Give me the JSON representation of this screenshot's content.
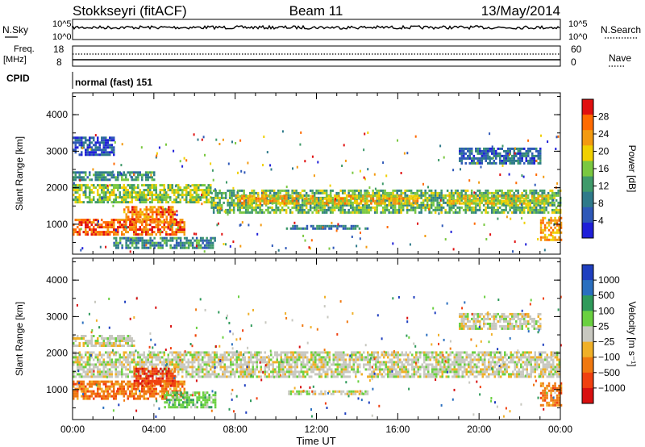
{
  "header": {
    "station": "Stokkseyri (fitACF)",
    "beam": "Beam 11",
    "date": "13/May/2014"
  },
  "status_panels": {
    "nsky_label": "N.Sky",
    "nsky_ticks": [
      "10^5",
      "10^0"
    ],
    "nsearch_label": "N.Search",
    "freq_label_1": "Freq.",
    "freq_label_2": "[MHz]",
    "freq_ticks": [
      "18",
      "8"
    ],
    "nave_label": "Nave",
    "nave_ticks": [
      "60",
      "0"
    ],
    "cpid_label": "CPID",
    "cpid_value": "normal (fast) 151"
  },
  "colors": {
    "power": [
      "#1f1fd8",
      "#2e58b8",
      "#2f7a8a",
      "#3f9a6a",
      "#7ac840",
      "#f0d000",
      "#f39a10",
      "#ff6a00",
      "#e01010"
    ],
    "velocity": [
      "#1f3fbf",
      "#2a6fbf",
      "#2f9a5a",
      "#6ad040",
      "#c8c8c0",
      "#f0b028",
      "#f07810",
      "#f04010",
      "#d81010"
    ],
    "ground_scatter": "#b8b8b0"
  },
  "chart_data": [
    {
      "type": "heatmap",
      "title": "Power",
      "ylabel": "Slant Range [km]",
      "xlabel": "Time UT",
      "x_ticks": [
        "00:00",
        "04:00",
        "08:00",
        "12:00",
        "16:00",
        "20:00",
        "00:00"
      ],
      "x_range_hours": [
        0,
        24
      ],
      "y_ticks": [
        1000,
        2000,
        3000,
        4000
      ],
      "y_range_km": [
        180,
        4600
      ],
      "colorbar_label": "Power [dB]",
      "colorbar_ticks": [
        "4",
        "8",
        "12",
        "16",
        "20",
        "24",
        "28"
      ],
      "colorbar_range": [
        0,
        32
      ],
      "bands": [
        {
          "t0": 0.0,
          "t1": 6.8,
          "r0": 1600,
          "r1": 2100,
          "level": 16
        },
        {
          "t0": 6.8,
          "t1": 24.0,
          "r0": 1300,
          "r1": 1950,
          "level": 14
        },
        {
          "t0": 8.0,
          "t1": 17.0,
          "r0": 1550,
          "r1": 1800,
          "level": 22
        },
        {
          "t0": 18.5,
          "t1": 23.5,
          "r0": 1550,
          "r1": 1800,
          "level": 20
        },
        {
          "t0": 0.0,
          "t1": 5.5,
          "r0": 750,
          "r1": 1150,
          "level": 28
        },
        {
          "t0": 2.5,
          "t1": 5.0,
          "r0": 1100,
          "r1": 1500,
          "level": 26
        },
        {
          "t0": 0.0,
          "t1": 4.0,
          "r0": 2200,
          "r1": 2450,
          "level": 10
        },
        {
          "t0": 0.0,
          "t1": 2.0,
          "r0": 2900,
          "r1": 3400,
          "level": 4
        },
        {
          "t0": 10.5,
          "t1": 14.5,
          "r0": 880,
          "r1": 980,
          "level": 8
        },
        {
          "t0": 19.0,
          "t1": 23.0,
          "r0": 2700,
          "r1": 3100,
          "level": 6
        },
        {
          "t0": 23.0,
          "t1": 24.0,
          "r0": 600,
          "r1": 1200,
          "level": 24
        },
        {
          "t0": 2.0,
          "t1": 7.0,
          "r0": 350,
          "r1": 650,
          "level": 10
        }
      ]
    },
    {
      "type": "heatmap",
      "title": "Velocity",
      "ylabel": "Slant Range [km]",
      "xlabel": "Time UT",
      "x_ticks": [
        "00:00",
        "04:00",
        "08:00",
        "12:00",
        "16:00",
        "20:00",
        "00:00"
      ],
      "x_range_hours": [
        0,
        24
      ],
      "y_ticks": [
        1000,
        2000,
        3000,
        4000
      ],
      "y_range_km": [
        180,
        4600
      ],
      "colorbar_label": "Velocity [m s⁻¹]",
      "colorbar_ticks": [
        "1000",
        "500",
        "100",
        "25",
        "−25",
        "−100",
        "−500",
        "−1000"
      ],
      "bands": [
        {
          "t0": 0.0,
          "t1": 24.0,
          "r0": 1350,
          "r1": 2050,
          "level": 4
        },
        {
          "t0": 0.0,
          "t1": 3.0,
          "r0": 2200,
          "r1": 2500,
          "level": 4
        },
        {
          "t0": 0.0,
          "t1": 5.5,
          "r0": 750,
          "r1": 1250,
          "level": 6
        },
        {
          "t0": 3.0,
          "t1": 5.0,
          "r0": 1100,
          "r1": 1600,
          "level": 7
        },
        {
          "t0": 4.5,
          "t1": 7.0,
          "r0": 500,
          "r1": 950,
          "level": 3
        },
        {
          "t0": 10.5,
          "t1": 14.5,
          "r0": 880,
          "r1": 980,
          "level": 4
        },
        {
          "t0": 23.0,
          "t1": 24.0,
          "r0": 600,
          "r1": 1200,
          "level": 6
        },
        {
          "t0": 19.0,
          "t1": 23.0,
          "r0": 2700,
          "r1": 3100,
          "level": 4
        }
      ]
    }
  ]
}
